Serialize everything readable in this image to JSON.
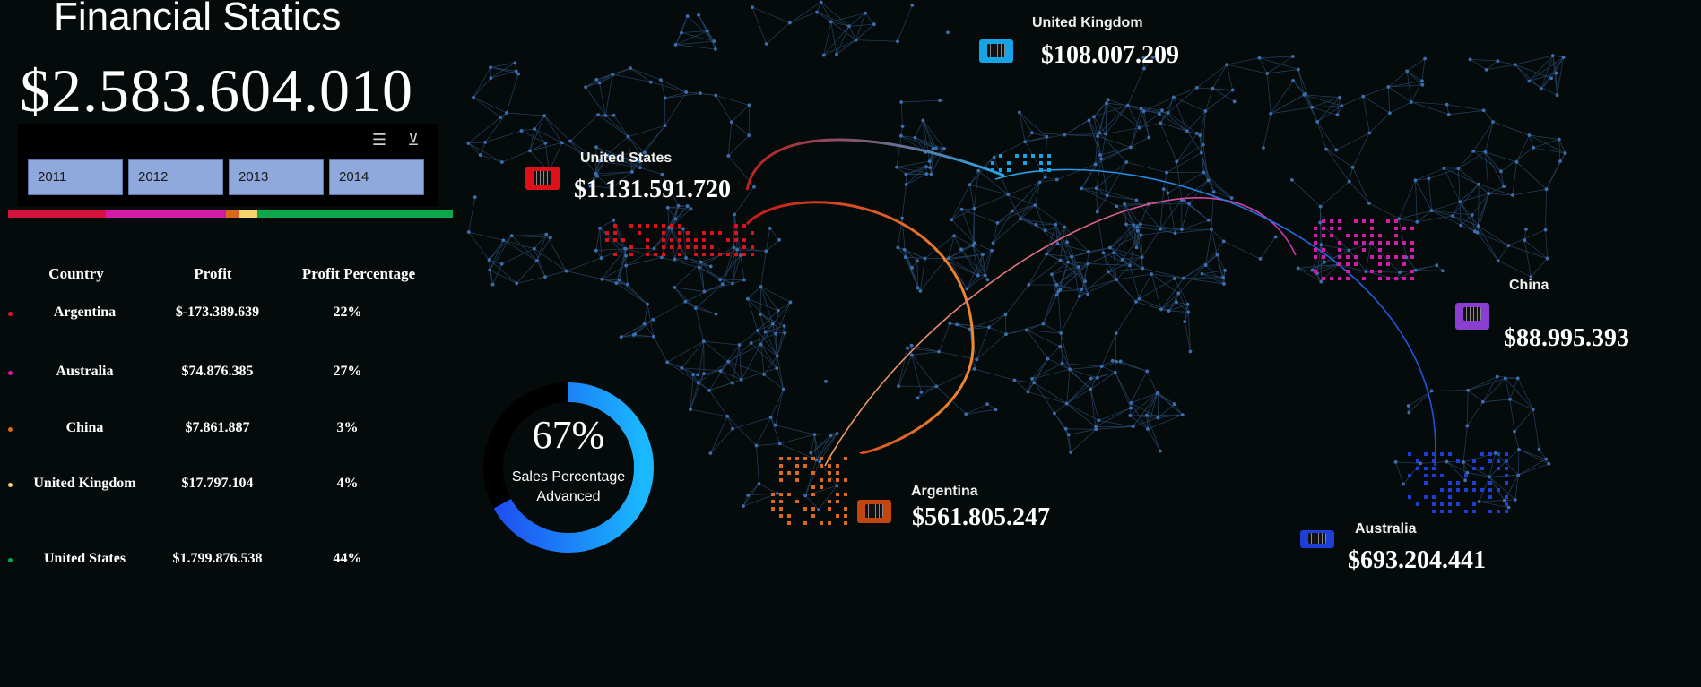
{
  "title": "Financial Statics",
  "total": "$2.583.604.010",
  "slicer": {
    "years": [
      "2011",
      "2012",
      "2013",
      "2014"
    ],
    "multi_select_icon": "multi-select-icon",
    "clear_filter_icon": "clear-filter-icon"
  },
  "color_bar": [
    {
      "color": "#d4143c",
      "fraction": 0.22
    },
    {
      "color": "#d41aa8",
      "fraction": 0.27
    },
    {
      "color": "#d96a1d",
      "fraction": 0.03
    },
    {
      "color": "#f5d26b",
      "fraction": 0.04
    },
    {
      "color": "#0aa84a",
      "fraction": 0.44
    }
  ],
  "table": {
    "headers": [
      "Country",
      "Profit",
      "Profit Percentage"
    ],
    "rows": [
      {
        "country": "Argentina",
        "profit": "$-173.389.639",
        "pct": "22%",
        "color": "#e0142e"
      },
      {
        "country": "Australia",
        "profit": "$74.876.385",
        "pct": "27%",
        "color": "#d41aa8"
      },
      {
        "country": "China",
        "profit": "$7.861.887",
        "pct": "3%",
        "color": "#d96a1d"
      },
      {
        "country": "United Kingdom",
        "profit": "$17.797.104",
        "pct": "4%",
        "color": "#f5d26b"
      },
      {
        "country": "United States",
        "profit": "$1.799.876.538",
        "pct": "44%",
        "color": "#0aa84a"
      }
    ]
  },
  "gauge": {
    "value": "67%",
    "fraction": 0.67,
    "label_line1": "Sales Percentage",
    "label_line2": "Advanced"
  },
  "map_labels": {
    "us": {
      "name": "United States",
      "value": "$1.131.591.720",
      "color": "#e0101a"
    },
    "uk": {
      "name": "United Kingdom",
      "value": "$108.007.209",
      "color": "#16a4e6"
    },
    "china": {
      "name": "China",
      "value": "$88.995.393",
      "color": "#8a3fd0"
    },
    "argentina": {
      "name": "Argentina",
      "value": "$561.805.247",
      "color": "#c2460d"
    },
    "australia": {
      "name": "Australia",
      "value": "$693.204.441",
      "color": "#1d3fd8"
    }
  }
}
